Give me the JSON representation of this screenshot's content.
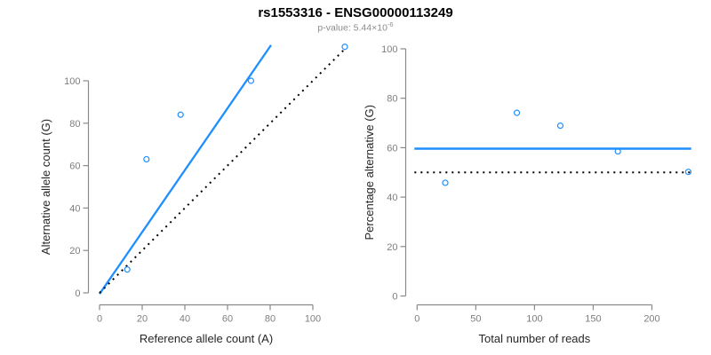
{
  "header": {
    "title": "rs1553316 - ENSG00000113249",
    "pvalue_prefix": "p-value: 5.44×10",
    "pvalue_exponent": "-6"
  },
  "colors": {
    "accent_blue": "#1e8fff",
    "dotted_black": "#000000",
    "axis_gray": "#8a8a8a",
    "tick_label_gray": "#7e7e7e",
    "axis_title_color": "#262626",
    "subtitle_gray": "#8c8c8c"
  },
  "chart_data": [
    {
      "type": "scatter",
      "name": "allele-counts",
      "xlabel": "Reference allele count (A)",
      "ylabel": "Alternative allele count (G)",
      "x_ticks": [
        0,
        20,
        40,
        60,
        80,
        100
      ],
      "y_ticks": [
        0,
        20,
        40,
        60,
        80,
        100
      ],
      "xlim": [
        0,
        116
      ],
      "ylim": [
        0,
        117
      ],
      "points": [
        [
          13,
          11
        ],
        [
          22,
          63
        ],
        [
          38,
          84
        ],
        [
          71,
          100
        ],
        [
          115,
          116
        ]
      ],
      "fit_line": {
        "x1": 0,
        "y1": -0.5,
        "x2": 80.4,
        "y2": 116.8,
        "style": "solid",
        "color_key": "accent_blue"
      },
      "identity_line": {
        "x1": 0,
        "y1": 0,
        "x2": 115.5,
        "y2": 115.5,
        "style": "dotted",
        "color_key": "dotted_black"
      }
    },
    {
      "type": "scatter",
      "name": "percentage-vs-reads",
      "xlabel": "Total number of reads",
      "ylabel": "Percentage alternative (G)",
      "x_ticks": [
        0,
        50,
        100,
        150,
        200
      ],
      "y_ticks": [
        0,
        20,
        40,
        60,
        80,
        100
      ],
      "xlim": [
        0,
        232
      ],
      "ylim": [
        0,
        100
      ],
      "points": [
        [
          24,
          45.8
        ],
        [
          85,
          74.1
        ],
        [
          122,
          68.9
        ],
        [
          171,
          58.5
        ],
        [
          231,
          50.2
        ]
      ],
      "mean_line": {
        "y": 59.6,
        "style": "solid",
        "color_key": "accent_blue"
      },
      "expected_line": {
        "y": 50,
        "style": "dotted",
        "color_key": "dotted_black"
      }
    }
  ]
}
